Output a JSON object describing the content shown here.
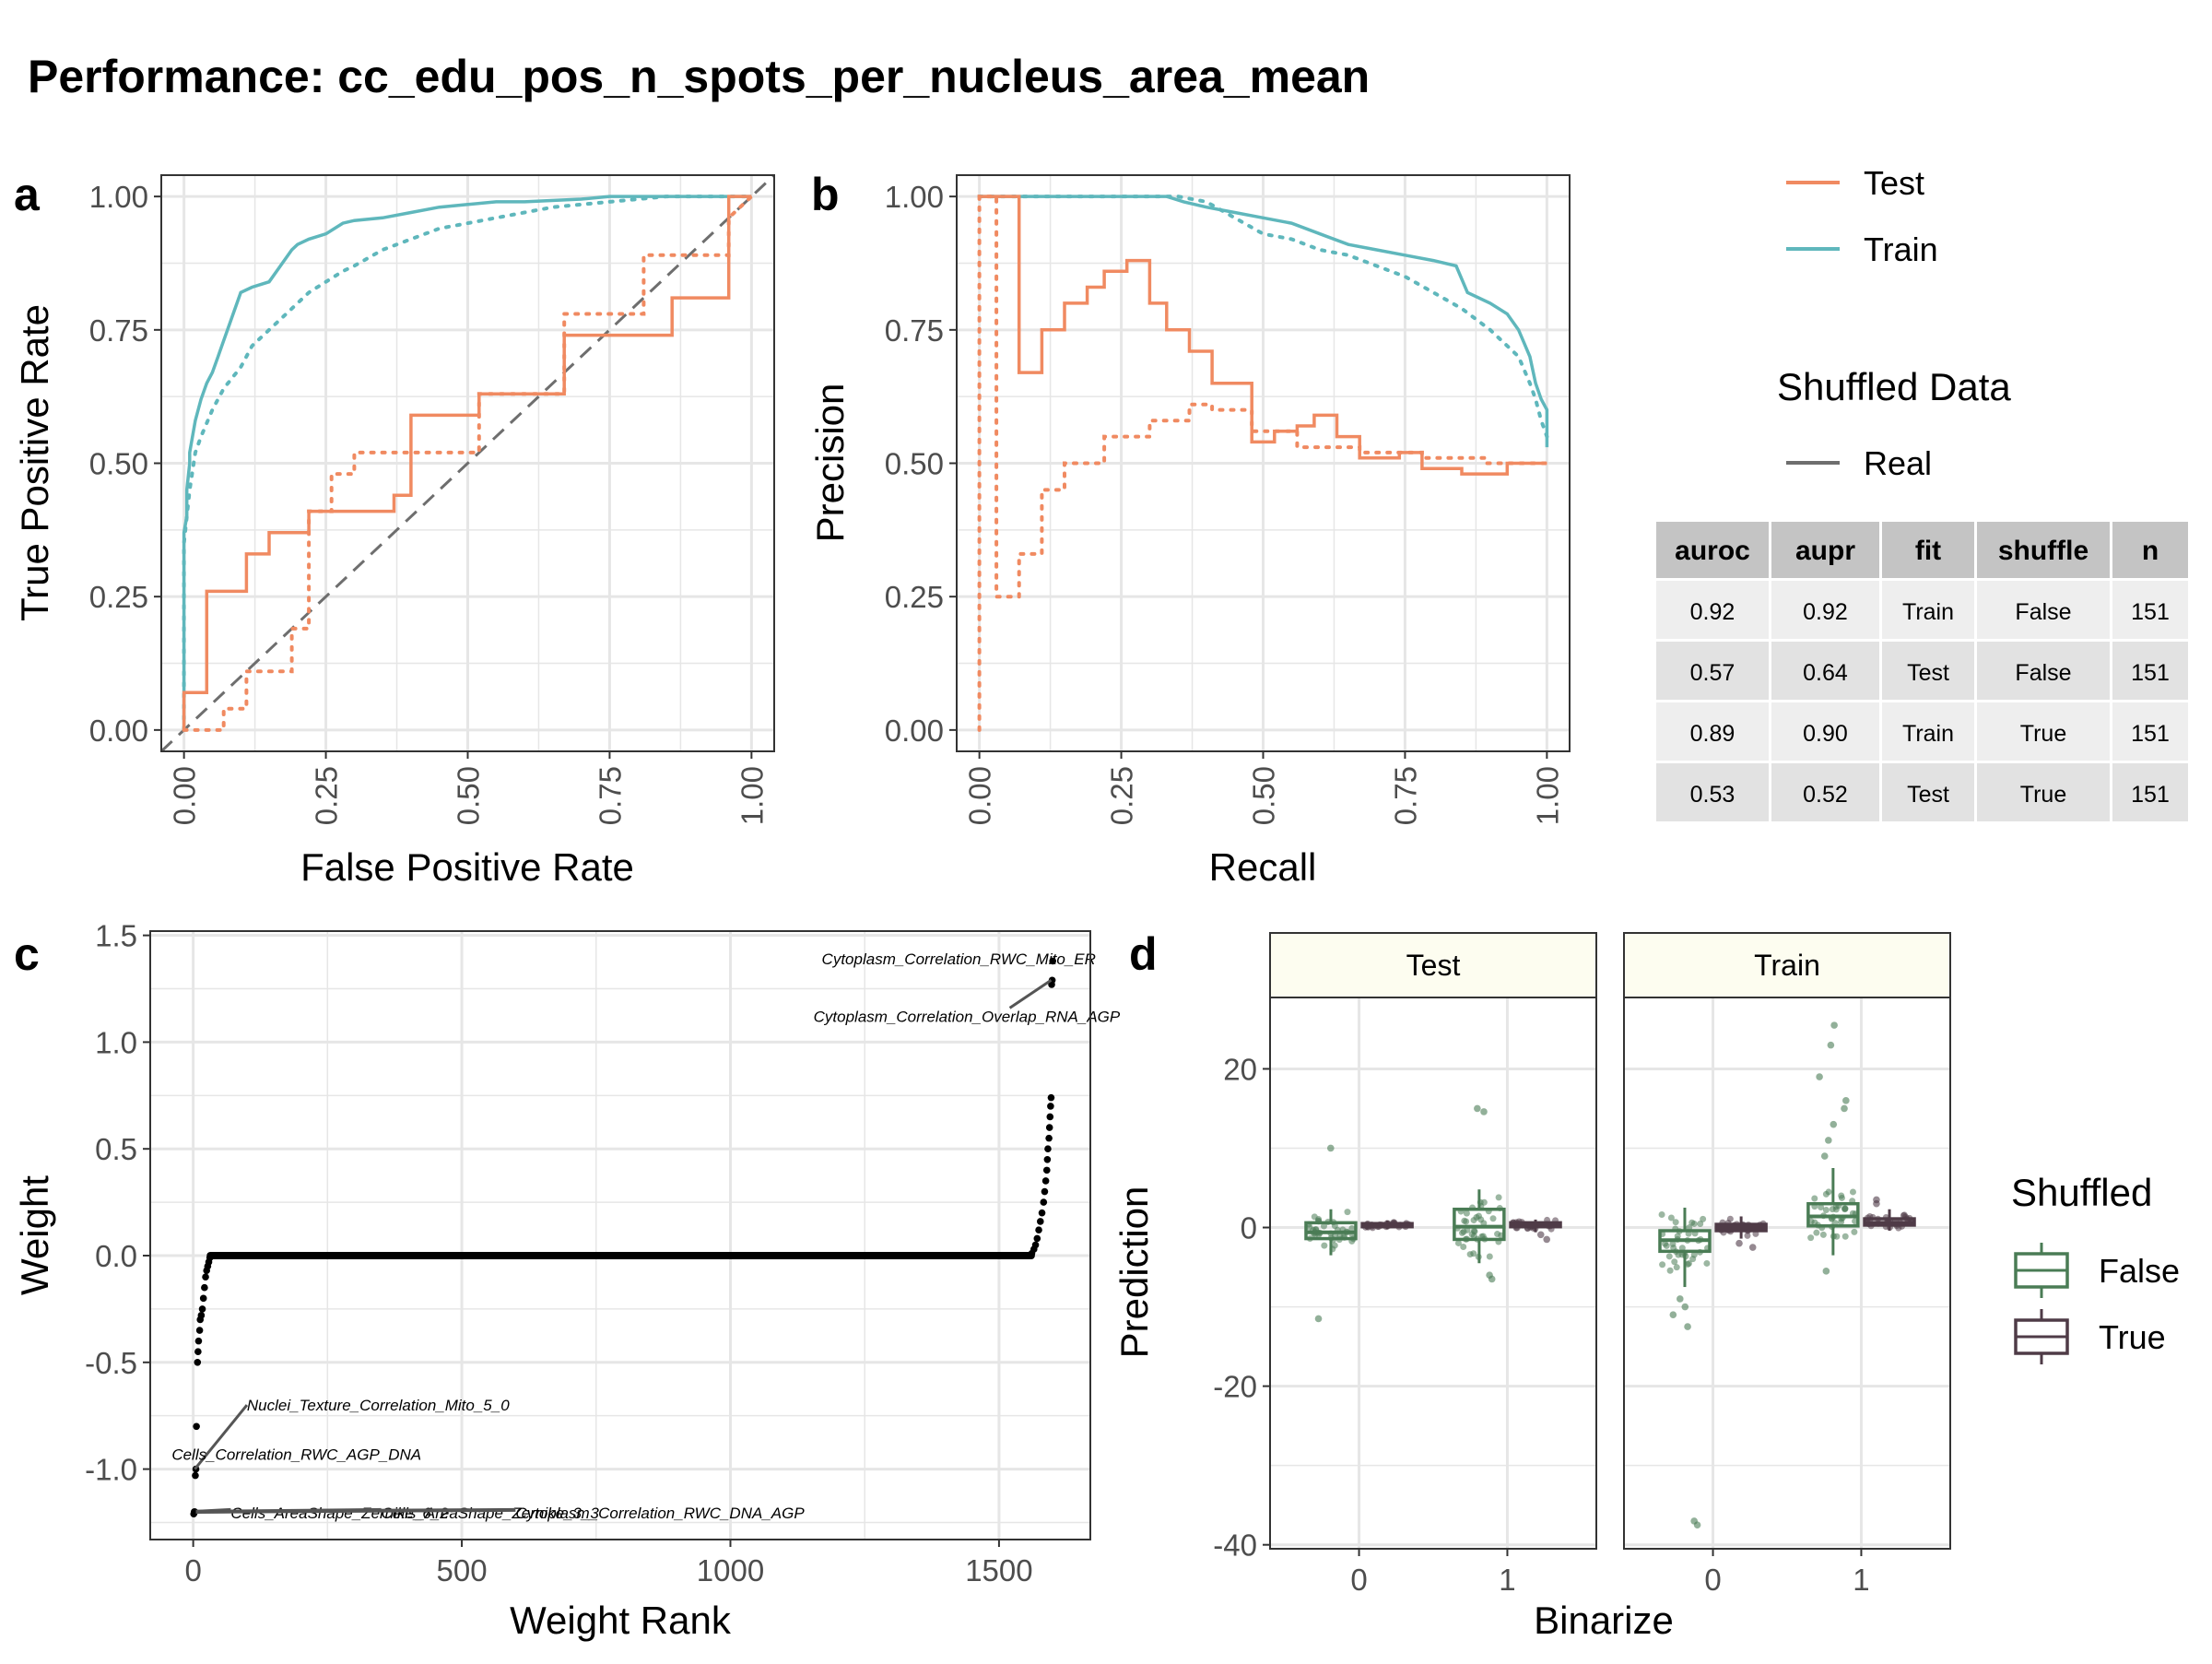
{
  "title": "Performance: cc_edu_pos_n_spots_per_nucleus_area_mean",
  "panel_labels": [
    "a",
    "b",
    "c",
    "d"
  ],
  "colors": {
    "test": "#F08A61",
    "train": "#5FB7BC",
    "real": "#6E6E6E",
    "false_box": "#4A7C55",
    "true_box": "#4F3B47",
    "strip_fill": "#FDFDF0",
    "grid": "#E6E6E6",
    "table_header": "#C4C4C4",
    "table_row_a": "#EEEEEE",
    "table_row_b": "#E2E2E2"
  },
  "legend_fit": {
    "items": [
      {
        "label": "Test",
        "color": "#F08A61"
      },
      {
        "label": "Train",
        "color": "#5FB7BC"
      }
    ]
  },
  "legend_shuffled": {
    "title": "Shuffled Data",
    "items": [
      {
        "label": "Real",
        "color": "#6E6E6E"
      }
    ]
  },
  "metrics_table": {
    "headers": [
      "auroc",
      "aupr",
      "fit",
      "shuffle",
      "n"
    ],
    "rows": [
      [
        "0.92",
        "0.92",
        "Train",
        "False",
        "151"
      ],
      [
        "0.57",
        "0.64",
        "Test",
        "False",
        "151"
      ],
      [
        "0.89",
        "0.90",
        "Train",
        "True",
        "151"
      ],
      [
        "0.53",
        "0.52",
        "Test",
        "True",
        "151"
      ]
    ]
  },
  "chart_data": [
    {
      "id": "roc",
      "type": "line",
      "xlabel": "False Positive Rate",
      "ylabel": "True Positive Rate",
      "xlim": [
        0,
        1
      ],
      "ylim": [
        0,
        1
      ],
      "xticks": [
        "0.00",
        "0.25",
        "0.50",
        "0.75",
        "1.00"
      ],
      "yticks": [
        "0.00",
        "0.25",
        "0.50",
        "0.75",
        "1.00"
      ],
      "grid": true,
      "series": [
        {
          "name": "Train",
          "shuffled": false,
          "step": true,
          "x": [
            0,
            0,
            0.005,
            0.005,
            0.01,
            0.01,
            0.02,
            0.03,
            0.04,
            0.05,
            0.06,
            0.07,
            0.08,
            0.1,
            0.12,
            0.15,
            0.17,
            0.19,
            0.2,
            0.22,
            0.25,
            0.28,
            0.3,
            0.35,
            0.4,
            0.45,
            0.5,
            0.55,
            0.6,
            0.7,
            0.75,
            0.8,
            0.9,
            1.0
          ],
          "y": [
            0,
            0.37,
            0.4,
            0.45,
            0.5,
            0.52,
            0.58,
            0.62,
            0.65,
            0.67,
            0.7,
            0.73,
            0.76,
            0.82,
            0.83,
            0.84,
            0.87,
            0.9,
            0.91,
            0.92,
            0.93,
            0.95,
            0.955,
            0.96,
            0.97,
            0.98,
            0.985,
            0.99,
            0.99,
            0.995,
            1.0,
            1.0,
            1.0,
            1.0
          ]
        },
        {
          "name": "Train",
          "shuffled": true,
          "step": true,
          "x": [
            0,
            0,
            0.01,
            0.02,
            0.03,
            0.05,
            0.07,
            0.1,
            0.12,
            0.15,
            0.18,
            0.2,
            0.22,
            0.25,
            0.28,
            0.3,
            0.35,
            0.4,
            0.45,
            0.5,
            0.55,
            0.6,
            0.65,
            0.7,
            0.75,
            0.8,
            0.85,
            0.9,
            1.0
          ],
          "y": [
            0,
            0.35,
            0.45,
            0.52,
            0.55,
            0.6,
            0.64,
            0.68,
            0.72,
            0.75,
            0.78,
            0.8,
            0.82,
            0.84,
            0.86,
            0.87,
            0.9,
            0.92,
            0.94,
            0.95,
            0.96,
            0.97,
            0.98,
            0.985,
            0.99,
            0.995,
            1.0,
            1.0,
            1.0
          ]
        },
        {
          "name": "Test",
          "shuffled": false,
          "step": true,
          "x": [
            0,
            0,
            0.04,
            0.04,
            0.11,
            0.11,
            0.15,
            0.15,
            0.22,
            0.22,
            0.37,
            0.37,
            0.4,
            0.4,
            0.52,
            0.52,
            0.67,
            0.67,
            0.86,
            0.86,
            0.96,
            0.96,
            1.0
          ],
          "y": [
            0,
            0.07,
            0.07,
            0.26,
            0.26,
            0.33,
            0.33,
            0.37,
            0.37,
            0.41,
            0.41,
            0.44,
            0.44,
            0.59,
            0.59,
            0.63,
            0.63,
            0.74,
            0.74,
            0.81,
            0.81,
            1.0,
            1.0
          ]
        },
        {
          "name": "Test",
          "shuffled": true,
          "step": true,
          "x": [
            0,
            0.04,
            0.07,
            0.07,
            0.11,
            0.11,
            0.19,
            0.19,
            0.22,
            0.22,
            0.26,
            0.26,
            0.3,
            0.3,
            0.44,
            0.44,
            0.52,
            0.52,
            0.67,
            0.67,
            0.81,
            0.81,
            0.96,
            0.96,
            1.0
          ],
          "y": [
            0,
            0,
            0,
            0.04,
            0.04,
            0.11,
            0.11,
            0.19,
            0.19,
            0.41,
            0.41,
            0.48,
            0.48,
            0.52,
            0.52,
            0.52,
            0.52,
            0.63,
            0.63,
            0.78,
            0.78,
            0.89,
            0.89,
            0.96,
            1.0
          ]
        },
        {
          "name": "Random",
          "step": false,
          "x": [
            0,
            1
          ],
          "y": [
            0,
            1
          ]
        }
      ]
    },
    {
      "id": "pr",
      "type": "line",
      "xlabel": "Recall",
      "ylabel": "Precision",
      "xlim": [
        0,
        1
      ],
      "ylim": [
        0,
        1
      ],
      "xticks": [
        "0.00",
        "0.25",
        "0.50",
        "0.75",
        "1.00"
      ],
      "yticks": [
        "0.00",
        "0.25",
        "0.50",
        "0.75",
        "1.00"
      ],
      "grid": true,
      "series": [
        {
          "name": "Train",
          "shuffled": false,
          "x": [
            0,
            0.1,
            0.2,
            0.33,
            0.36,
            0.4,
            0.45,
            0.5,
            0.55,
            0.6,
            0.65,
            0.7,
            0.75,
            0.8,
            0.84,
            0.86,
            0.9,
            0.93,
            0.95,
            0.97,
            0.98,
            0.99,
            1.0,
            1.0
          ],
          "y": [
            1.0,
            1.0,
            1.0,
            1.0,
            0.99,
            0.98,
            0.97,
            0.96,
            0.95,
            0.93,
            0.91,
            0.9,
            0.89,
            0.88,
            0.87,
            0.82,
            0.8,
            0.78,
            0.75,
            0.7,
            0.65,
            0.62,
            0.6,
            0.53
          ]
        },
        {
          "name": "Train",
          "shuffled": true,
          "x": [
            0,
            0.1,
            0.2,
            0.3,
            0.35,
            0.4,
            0.45,
            0.5,
            0.55,
            0.6,
            0.65,
            0.7,
            0.75,
            0.8,
            0.85,
            0.9,
            0.93,
            0.95,
            0.97,
            0.98,
            0.99,
            1.0
          ],
          "y": [
            1.0,
            1.0,
            1.0,
            1.0,
            1.0,
            0.99,
            0.96,
            0.93,
            0.92,
            0.9,
            0.89,
            0.87,
            0.85,
            0.82,
            0.79,
            0.75,
            0.72,
            0.7,
            0.65,
            0.62,
            0.58,
            0.55
          ]
        },
        {
          "name": "Test",
          "shuffled": false,
          "x": [
            0,
            0.04,
            0.04,
            0.07,
            0.07,
            0.11,
            0.11,
            0.15,
            0.15,
            0.19,
            0.19,
            0.22,
            0.22,
            0.26,
            0.26,
            0.3,
            0.3,
            0.33,
            0.33,
            0.37,
            0.37,
            0.41,
            0.41,
            0.48,
            0.48,
            0.52,
            0.52,
            0.56,
            0.56,
            0.59,
            0.59,
            0.63,
            0.63,
            0.67,
            0.67,
            0.74,
            0.74,
            0.78,
            0.78,
            0.85,
            0.85,
            0.93,
            0.93,
            1.0
          ],
          "y": [
            1.0,
            1.0,
            1.0,
            1.0,
            0.67,
            0.67,
            0.75,
            0.75,
            0.8,
            0.8,
            0.83,
            0.83,
            0.86,
            0.86,
            0.88,
            0.88,
            0.8,
            0.8,
            0.75,
            0.75,
            0.71,
            0.71,
            0.65,
            0.65,
            0.54,
            0.54,
            0.56,
            0.56,
            0.57,
            0.57,
            0.59,
            0.59,
            0.55,
            0.55,
            0.51,
            0.51,
            0.52,
            0.52,
            0.49,
            0.49,
            0.48,
            0.48,
            0.5,
            0.5
          ]
        },
        {
          "name": "Test",
          "shuffled": true,
          "x": [
            0,
            0,
            0.03,
            0.03,
            0.07,
            0.07,
            0.11,
            0.11,
            0.15,
            0.15,
            0.22,
            0.22,
            0.3,
            0.3,
            0.37,
            0.37,
            0.41,
            0.41,
            0.48,
            0.48,
            0.56,
            0.56,
            0.67,
            0.67,
            0.78,
            0.78,
            0.89,
            0.89,
            1.0
          ],
          "y": [
            0,
            1.0,
            1.0,
            0.25,
            0.25,
            0.33,
            0.33,
            0.45,
            0.45,
            0.5,
            0.5,
            0.55,
            0.55,
            0.58,
            0.58,
            0.61,
            0.61,
            0.6,
            0.6,
            0.56,
            0.56,
            0.53,
            0.53,
            0.52,
            0.52,
            0.51,
            0.51,
            0.5,
            0.5
          ]
        }
      ]
    },
    {
      "id": "weights",
      "type": "scatter",
      "xlabel": "Weight Rank",
      "ylabel": "Weight",
      "xlim": [
        -80,
        1670
      ],
      "ylim": [
        -1.33,
        1.52
      ],
      "xticks": [
        "0",
        "500",
        "1000",
        "1500"
      ],
      "yticks": [
        "-1.0",
        "-0.5",
        "0.0",
        "0.5",
        "1.0",
        "1.5"
      ],
      "grid": true,
      "points": {
        "low_tail": [
          [
            1,
            -1.21
          ],
          [
            2,
            -1.2
          ],
          [
            3,
            -1.2
          ],
          [
            4,
            -1.03
          ],
          [
            5,
            -1.0
          ],
          [
            6,
            -0.8
          ],
          [
            8,
            -0.5
          ],
          [
            9,
            -0.45
          ],
          [
            10,
            -0.4
          ],
          [
            12,
            -0.35
          ],
          [
            13,
            -0.3
          ],
          [
            15,
            -0.28
          ],
          [
            17,
            -0.25
          ],
          [
            19,
            -0.2
          ],
          [
            21,
            -0.15
          ],
          [
            23,
            -0.1
          ],
          [
            25,
            -0.07
          ],
          [
            27,
            -0.05
          ],
          [
            29,
            -0.03
          ],
          [
            31,
            -0.01
          ]
        ],
        "zero_band": {
          "x_start": 32,
          "x_end": 1560,
          "y": 0.0
        },
        "high_tail": [
          [
            1561,
            0.01
          ],
          [
            1565,
            0.03
          ],
          [
            1568,
            0.05
          ],
          [
            1571,
            0.08
          ],
          [
            1574,
            0.12
          ],
          [
            1577,
            0.16
          ],
          [
            1580,
            0.2
          ],
          [
            1583,
            0.25
          ],
          [
            1585,
            0.3
          ],
          [
            1587,
            0.35
          ],
          [
            1589,
            0.4
          ],
          [
            1590,
            0.45
          ],
          [
            1591,
            0.5
          ],
          [
            1593,
            0.55
          ],
          [
            1594,
            0.6
          ],
          [
            1595,
            0.65
          ],
          [
            1596,
            0.7
          ],
          [
            1597,
            0.74
          ],
          [
            1598,
            1.27
          ],
          [
            1599,
            1.29
          ],
          [
            1600,
            1.38
          ]
        ]
      },
      "annotations": [
        {
          "text": "Cytoplasm_Correlation_RWC_Mito_ER"
        },
        {
          "text": "Cytoplasm_Correlation_Overlap_RNA_AGP"
        },
        {
          "text": "Nuclei_Texture_Correlation_Mito_5_0"
        },
        {
          "text": "Cells_Correlation_RWC_AGP_DNA"
        },
        {
          "text": "Cells_AreaShape_Zernike_6_2"
        },
        {
          "text": "Cells_AreaShape_Zernike_3_3"
        },
        {
          "text": "Cytoplasm_Correlation_RWC_DNA_AGP"
        }
      ]
    },
    {
      "id": "predictions",
      "type": "box",
      "xlabel": "Binarize",
      "ylabel": "Prediction",
      "ylim": [
        -40.5,
        29
      ],
      "yticks": [
        "-40",
        "-20",
        "0",
        "20"
      ],
      "facets": [
        "Test",
        "Train"
      ],
      "categories": [
        "0",
        "1"
      ],
      "legend": {
        "title": "Shuffled",
        "items": [
          "False",
          "True"
        ]
      },
      "boxes": [
        {
          "facet": "Test",
          "binarize": "0",
          "shuffled": "False",
          "q1": -1.4,
          "median": -0.6,
          "q3": 0.6,
          "min": -3.5,
          "max": 2.3,
          "outliers": [
            10,
            -11.5
          ]
        },
        {
          "facet": "Test",
          "binarize": "0",
          "shuffled": "True",
          "q1": 0.1,
          "median": 0.3,
          "q3": 0.5,
          "min": -0.2,
          "max": 0.9,
          "outliers": []
        },
        {
          "facet": "Test",
          "binarize": "1",
          "shuffled": "False",
          "q1": -1.5,
          "median": 0.1,
          "q3": 2.3,
          "min": -4.5,
          "max": 4.8,
          "outliers": [
            15,
            14.6,
            -6.5,
            -6
          ]
        },
        {
          "facet": "Test",
          "binarize": "1",
          "shuffled": "True",
          "q1": 0.1,
          "median": 0.3,
          "q3": 0.6,
          "min": -0.6,
          "max": 1.0,
          "outliers": [
            -1.5,
            -0.9
          ]
        },
        {
          "facet": "Train",
          "binarize": "0",
          "shuffled": "False",
          "q1": -3.0,
          "median": -1.6,
          "q3": -0.4,
          "min": -7.5,
          "max": 2.5,
          "outliers": [
            -9,
            -10,
            -11,
            -12.5,
            -37,
            -37.5
          ]
        },
        {
          "facet": "Train",
          "binarize": "0",
          "shuffled": "True",
          "q1": -0.4,
          "median": 0.0,
          "q3": 0.4,
          "min": -1.4,
          "max": 1.4,
          "outliers": [
            -2.0,
            -2.5
          ]
        },
        {
          "facet": "Train",
          "binarize": "1",
          "shuffled": "False",
          "q1": 0.2,
          "median": 1.4,
          "q3": 3.0,
          "min": -3.5,
          "max": 7.5,
          "outliers": [
            9,
            11,
            13,
            15,
            16,
            19,
            23,
            25.5,
            -5.5
          ]
        },
        {
          "facet": "Train",
          "binarize": "1",
          "shuffled": "True",
          "q1": 0.3,
          "median": 0.6,
          "q3": 1.1,
          "min": -0.4,
          "max": 2.3,
          "outliers": [
            3,
            3.5
          ]
        }
      ]
    }
  ]
}
